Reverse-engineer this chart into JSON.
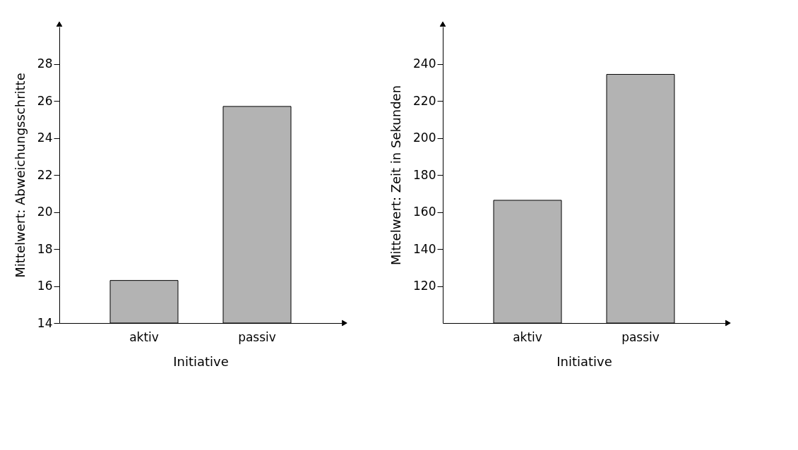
{
  "chart_data": [
    {
      "type": "bar",
      "categories": [
        "aktiv",
        "passiv"
      ],
      "values": [
        16.3,
        25.7
      ],
      "color": "#b3b3b3",
      "xlabel": "Initiative",
      "ylabel": "Mittelwert: Abweichungsschritte",
      "ylim": [
        14,
        30
      ],
      "yticks": [
        14,
        16,
        18,
        20,
        22,
        24,
        26,
        28
      ],
      "grid": false
    },
    {
      "type": "bar",
      "categories": [
        "aktiv",
        "passiv"
      ],
      "values": [
        166.3,
        234.3
      ],
      "color": "#b3b3b3",
      "xlabel": "Initiative",
      "ylabel": "Mittelwert: Zeit in Sekunden",
      "ylim": [
        100,
        260
      ],
      "yticks": [
        120,
        140,
        160,
        180,
        200,
        220,
        240
      ],
      "grid": false
    }
  ]
}
